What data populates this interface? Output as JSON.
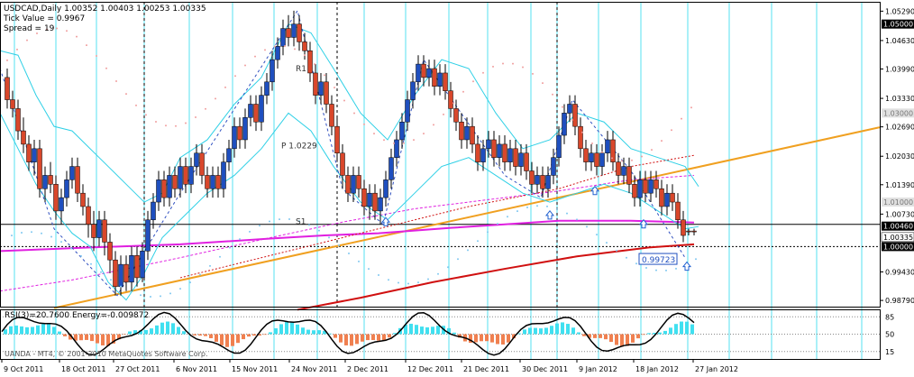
{
  "header": {
    "symbol_line": "USDCAD,Daily  1.00352 1.00403 1.00253 1.00335",
    "tick_value": "Tick Value = 0.9967",
    "spread": "Spread = 19"
  },
  "indicator": {
    "title": "RSI(3)=20.7600  Energy=-0.009872",
    "level_top": "85",
    "level_mid": "50",
    "level_bottom": "15",
    "copyright": "UANDA - MT4, © 2001-2010 MetaQuotes Software Corp."
  },
  "price_axis": {
    "labels": [
      "1.05290",
      "1.04630",
      "1.03990",
      "1.03330",
      "1.02690",
      "1.02030",
      "1.01390",
      "1.00730",
      "0.99430",
      "0.98790"
    ],
    "highlight_black": [
      "1.05000",
      "1.00460",
      "1.00000"
    ],
    "highlight_gray": [
      "1.03000",
      "1.01000"
    ],
    "current_price": "1.00335"
  },
  "time_axis": {
    "labels": [
      "9 Oct 2011",
      "18 Oct 2011",
      "27 Oct 2011",
      "6 Nov 2011",
      "15 Nov 2011",
      "24 Nov 2011",
      "2 Dec 2011",
      "12 Dec 2011",
      "21 Dec 2011",
      "30 Dec 2011",
      "9 Jan 2012",
      "18 Jan 2012",
      "27 Jan 2012"
    ]
  },
  "annotations": {
    "pivot": "P 1.0229",
    "r1": "R1",
    "s1": "S1",
    "price_box": "0.99723"
  },
  "colors": {
    "bull_candle": "#1f4fbf",
    "bear_candle": "#d9472b",
    "channel": "#2fd0e6",
    "trendline": "#f0a020",
    "ma_magenta": "#e020e0",
    "ma_red": "#d01010",
    "grid_cyan": "#55e0f0",
    "rsi_line": "#000000",
    "energy_pos": "#40e0f0",
    "energy_neg": "#f08050"
  }
}
